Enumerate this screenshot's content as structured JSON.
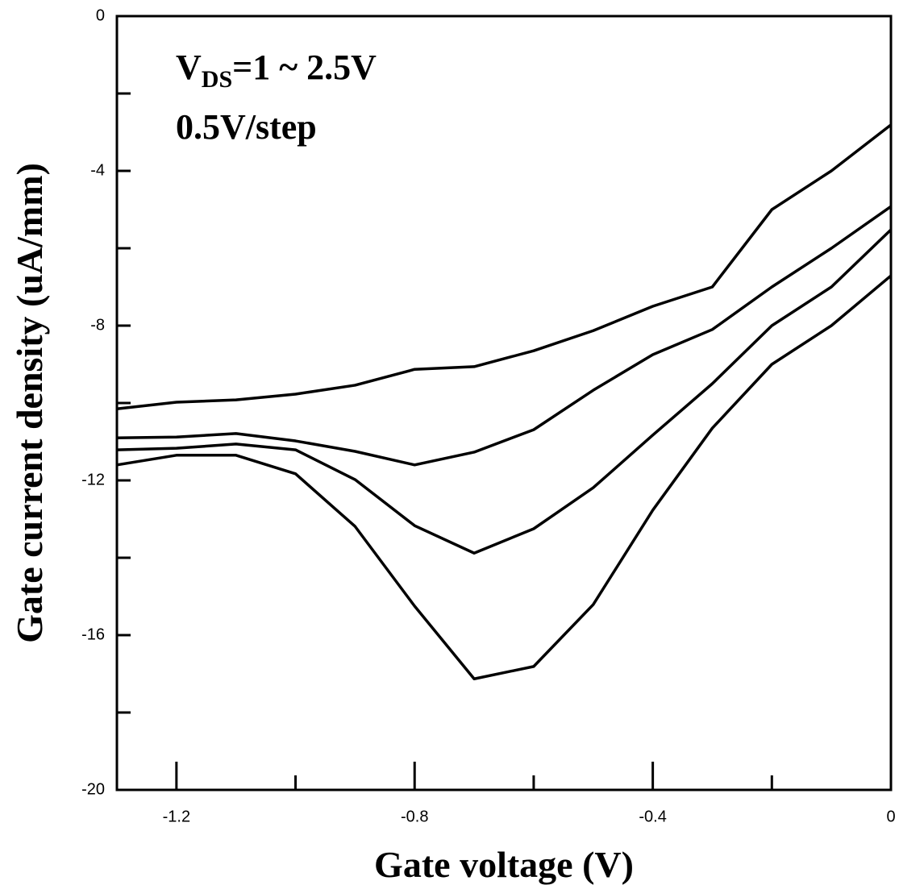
{
  "chart_data": {
    "type": "line",
    "xlabel": "Gate voltage (V)",
    "ylabel": "Gate current density (uA/mm)",
    "annotation": {
      "main": "V",
      "sub": "DS",
      "rest": "=1 ~ 2.5V"
    },
    "annotation2": "0.5V/step",
    "x": [
      -1.3,
      -1.2,
      -1.1,
      -1.0,
      -0.9,
      -0.8,
      -0.7,
      -0.6,
      -0.5,
      -0.4,
      -0.3,
      -0.2,
      -0.1,
      0
    ],
    "series": [
      {
        "color": "#000000",
        "values": [
          -10.15,
          -9.98,
          -9.92,
          -9.77,
          -9.54,
          -9.13,
          -9.06,
          -8.65,
          -8.13,
          -7.5,
          -7.0,
          -5.0,
          -4.0,
          -2.81
        ]
      },
      {
        "color": "#000000",
        "values": [
          -10.9,
          -10.88,
          -10.79,
          -10.98,
          -11.25,
          -11.6,
          -11.27,
          -10.69,
          -9.67,
          -8.75,
          -8.1,
          -7.0,
          -6.0,
          -4.92
        ]
      },
      {
        "color": "#000000",
        "values": [
          -11.21,
          -11.17,
          -11.06,
          -11.21,
          -11.98,
          -13.17,
          -13.88,
          -13.25,
          -12.19,
          -10.83,
          -9.5,
          -8.0,
          -7.0,
          -5.52
        ]
      },
      {
        "color": "#000000",
        "values": [
          -11.6,
          -11.35,
          -11.35,
          -11.83,
          -13.19,
          -15.25,
          -17.13,
          -16.81,
          -15.21,
          -12.77,
          -10.65,
          -9.0,
          -8.0,
          -6.71
        ]
      }
    ],
    "xlim": [
      -1.3,
      0
    ],
    "ylim": [
      -20,
      0
    ],
    "xticks": [
      -1.2,
      -0.8,
      -0.4,
      0
    ],
    "xticks_minor": [
      -1.0,
      -0.6,
      -0.2
    ],
    "yticks": [
      -20,
      -16,
      -12,
      -8,
      -4,
      0
    ],
    "yticks_minor": [
      -18,
      -14,
      -10,
      -6,
      -2
    ]
  }
}
